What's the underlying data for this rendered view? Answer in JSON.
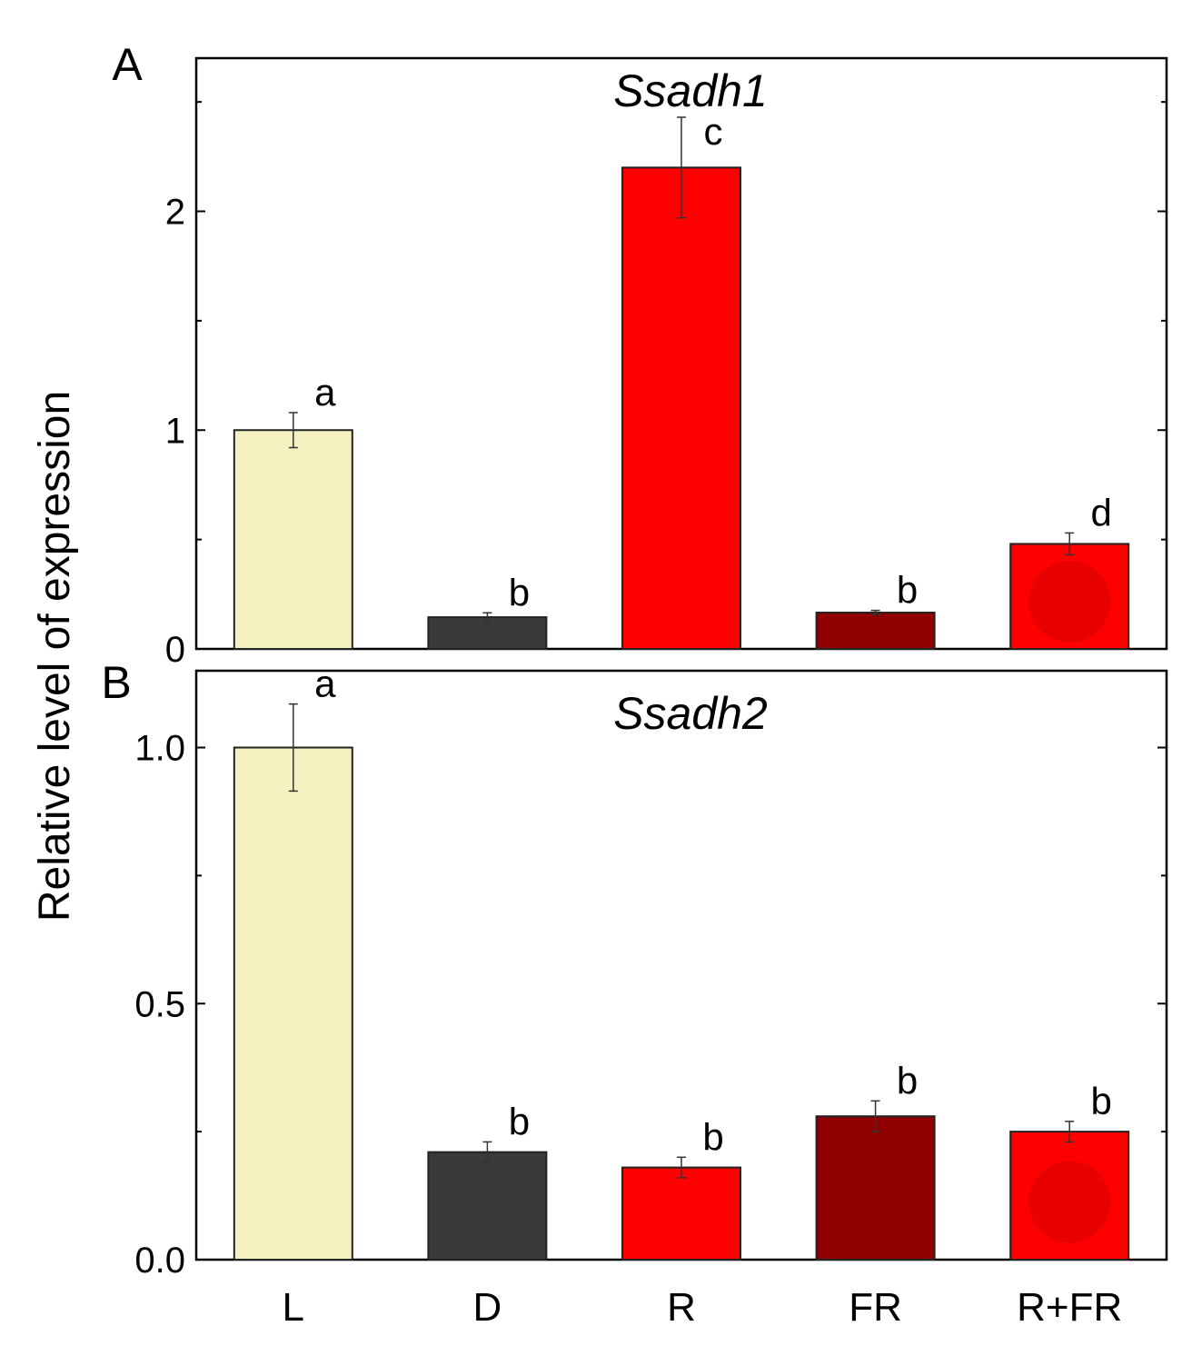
{
  "chart_data": {
    "type": "bar",
    "ylabel": "Relative level of expression",
    "categories": [
      "L",
      "D",
      "R",
      "FR",
      "R+FR"
    ],
    "colors": [
      "#f5f0c0",
      "#3a3a3a",
      "#ff0000",
      "#900000",
      "#ff0000"
    ],
    "panels": [
      {
        "letter": "A",
        "title": "Ssadh1",
        "ylim": [
          0,
          2.7
        ],
        "yticks": [
          0,
          1,
          2
        ],
        "ytick_labels": [
          "0",
          "1",
          "2"
        ],
        "minor_ticks": [
          0.5,
          1.5,
          2.5
        ],
        "values": [
          1.0,
          0.145,
          2.2,
          0.166,
          0.48
        ],
        "errors": [
          0.08,
          0.02,
          0.23,
          0.01,
          0.05
        ],
        "letters": [
          "a",
          "b",
          "c",
          "b",
          "d"
        ]
      },
      {
        "letter": "B",
        "title": "Ssadh2",
        "ylim": [
          0,
          1.15
        ],
        "yticks": [
          0,
          0.5,
          1.0
        ],
        "ytick_labels": [
          "0.0",
          "0.5",
          "1.0"
        ],
        "minor_ticks": [
          0.25,
          0.75
        ],
        "values": [
          1.0,
          0.21,
          0.18,
          0.28,
          0.25
        ],
        "errors": [
          0.085,
          0.02,
          0.02,
          0.03,
          0.02
        ],
        "letters": [
          "a",
          "b",
          "b",
          "b",
          "b"
        ]
      }
    ]
  }
}
